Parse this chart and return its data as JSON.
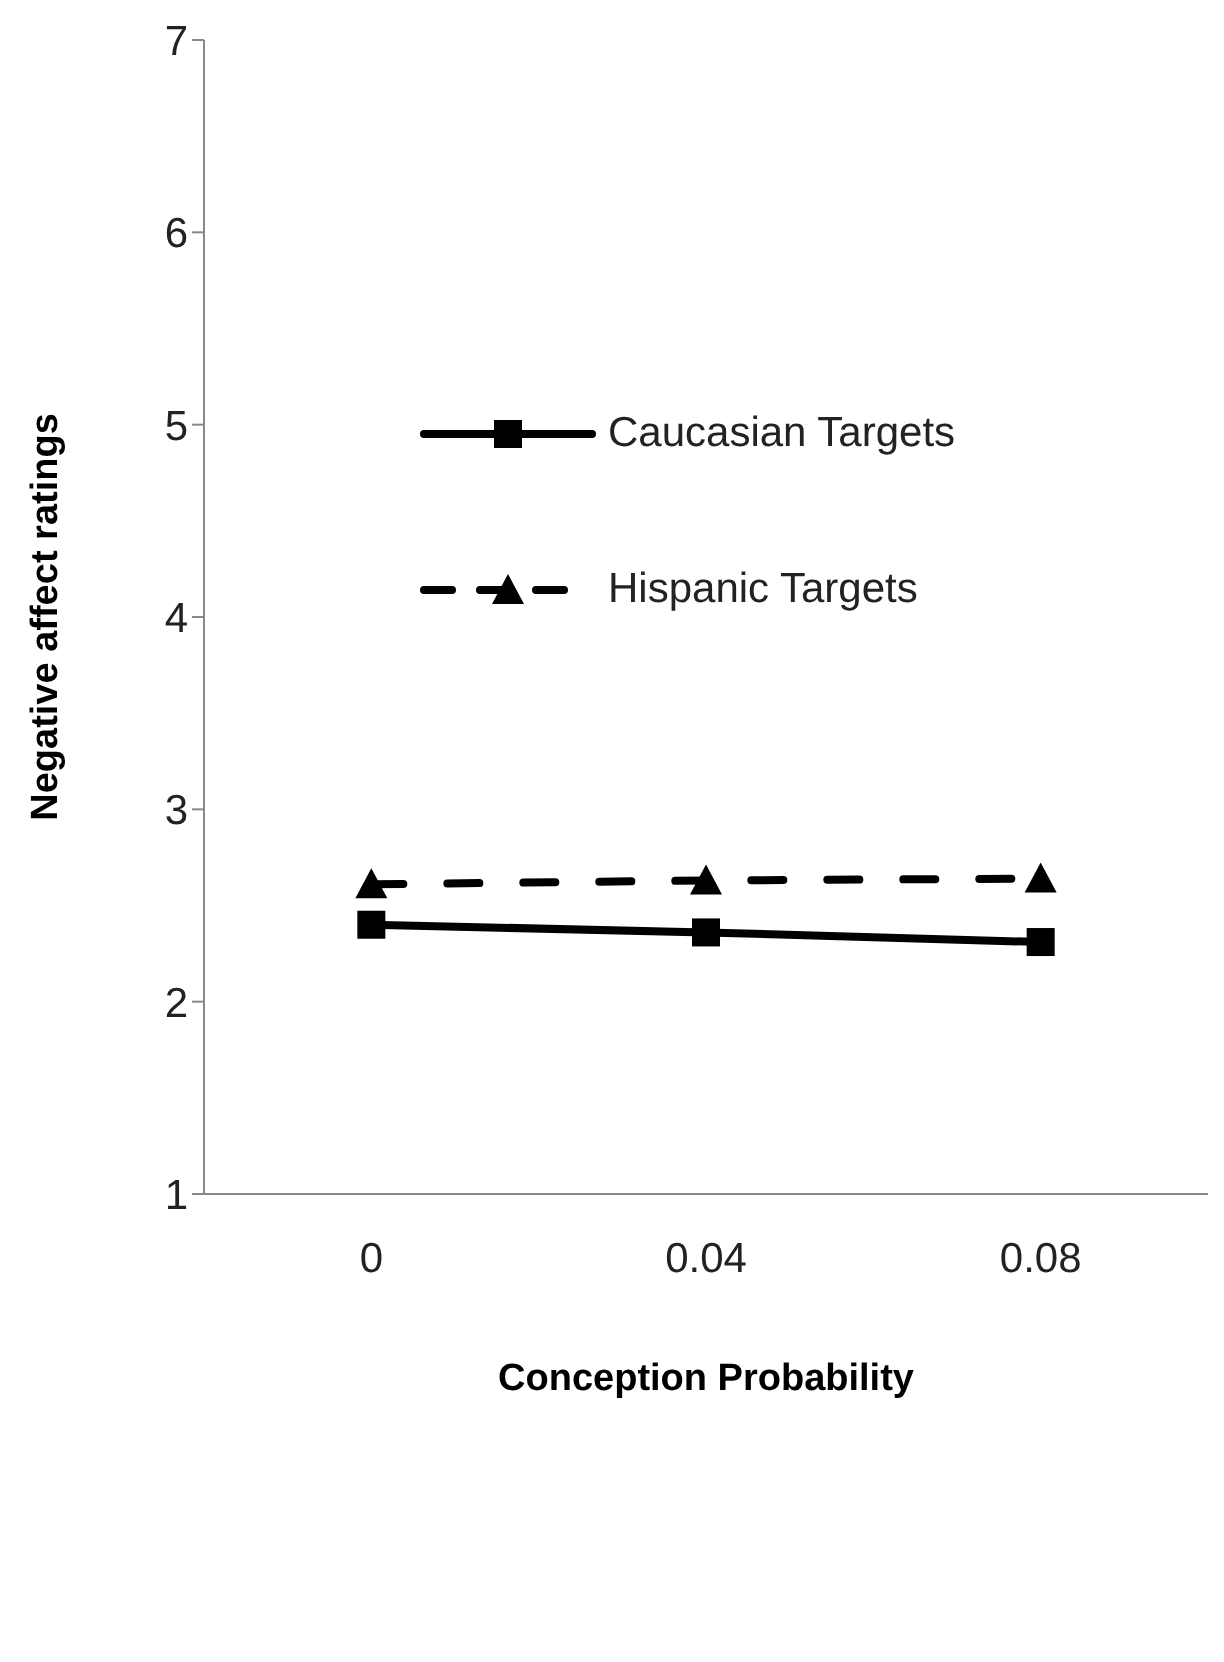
{
  "chart_data": {
    "type": "line",
    "xlabel": "Conception Probability",
    "ylabel": "Negative affect ratings",
    "categories": [
      "0",
      "0.04",
      "0.08"
    ],
    "series": [
      {
        "name": "Caucasian Targets",
        "color": "#000000",
        "marker": "square",
        "line_style": "solid",
        "values": [
          2.4,
          2.36,
          2.31
        ]
      },
      {
        "name": "Hispanic Targets",
        "color": "#000000",
        "marker": "triangle",
        "line_style": "dashed",
        "values": [
          2.61,
          2.63,
          2.64
        ]
      }
    ],
    "ylim": [
      1,
      7
    ],
    "yticks": [
      1,
      2,
      3,
      4,
      5,
      6,
      7
    ],
    "grid": false,
    "legend": "top"
  }
}
